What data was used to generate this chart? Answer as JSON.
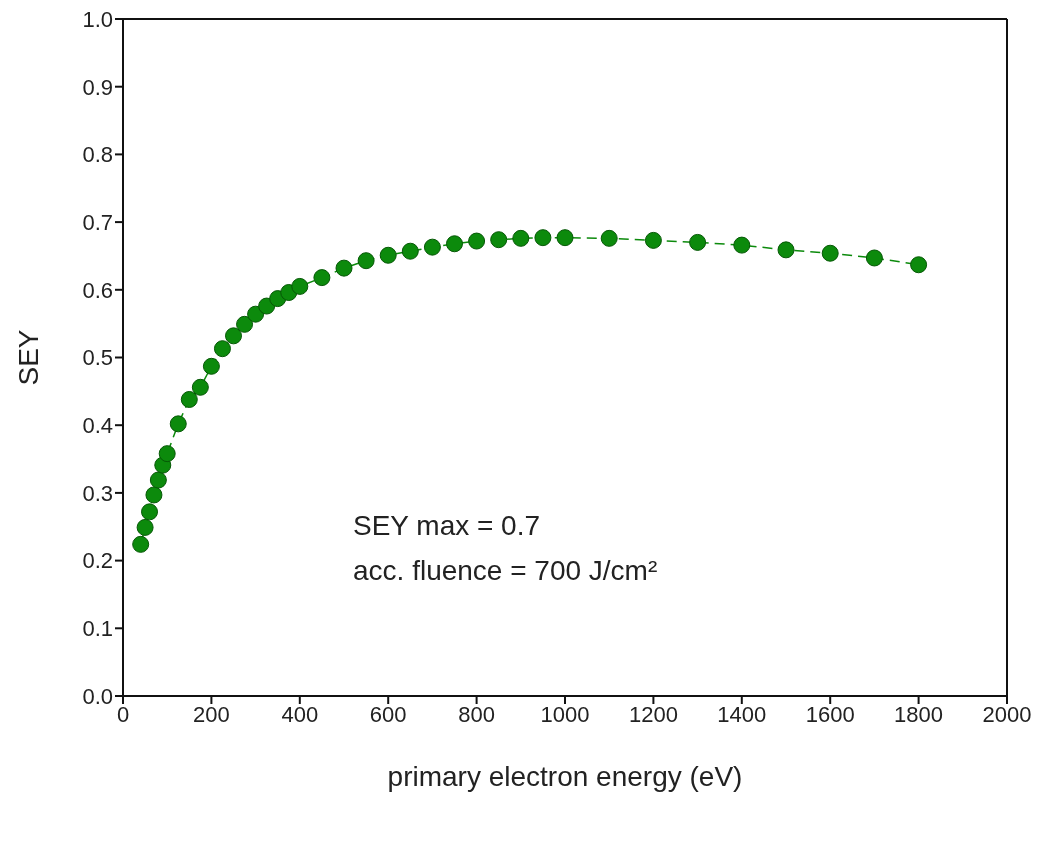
{
  "chart_data": {
    "type": "line",
    "xlabel": "primary electron energy (eV)",
    "ylabel": "SEY",
    "annotations": [
      "SEY max = 0.7",
      "acc. fluence = 700 J/cm²"
    ],
    "x": [
      40,
      50,
      60,
      70,
      80,
      90,
      100,
      125,
      150,
      175,
      200,
      225,
      250,
      275,
      300,
      325,
      350,
      375,
      400,
      450,
      500,
      550,
      600,
      650,
      700,
      750,
      800,
      850,
      900,
      950,
      1000,
      1100,
      1200,
      1300,
      1400,
      1500,
      1600,
      1700,
      1800
    ],
    "series": [
      {
        "color": "#0c8a0c",
        "values": [
          0.224,
          0.249,
          0.272,
          0.297,
          0.319,
          0.341,
          0.358,
          0.402,
          0.438,
          0.456,
          0.487,
          0.513,
          0.532,
          0.549,
          0.564,
          0.576,
          0.587,
          0.596,
          0.605,
          0.618,
          0.632,
          0.643,
          0.651,
          0.657,
          0.663,
          0.668,
          0.672,
          0.674,
          0.676,
          0.677,
          0.677,
          0.676,
          0.673,
          0.67,
          0.666,
          0.659,
          0.654,
          0.647,
          0.637
        ]
      }
    ],
    "xlim": [
      0,
      2000
    ],
    "xticks": [
      0,
      200,
      400,
      600,
      800,
      1000,
      1200,
      1400,
      1600,
      1800,
      2000
    ],
    "ylim": [
      0,
      1
    ],
    "yticks": [
      {
        "value": 0,
        "label": "0.0"
      },
      0.1,
      0.2,
      0.3,
      0.4,
      0.5,
      0.6,
      0.7,
      0.8,
      0.9,
      {
        "value": 1,
        "label": "1.0"
      }
    ],
    "marker": "circle",
    "line_style": "dashed",
    "grid": false,
    "legend": false
  }
}
